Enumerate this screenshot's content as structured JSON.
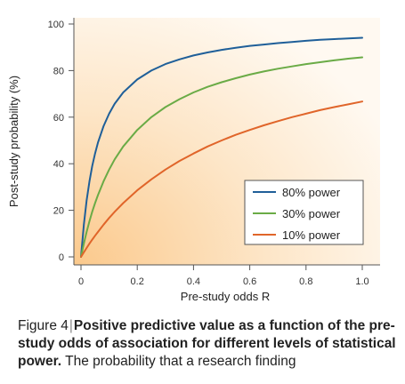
{
  "chart_data": {
    "type": "line",
    "xlabel": "Pre-study odds R",
    "ylabel": "Post-study probability (%)",
    "xlim": [
      0,
      1.0
    ],
    "ylim": [
      0,
      100
    ],
    "x_ticks": [
      "0",
      "0.2",
      "0.4",
      "0.6",
      "0.8",
      "1.0"
    ],
    "y_ticks": [
      "0",
      "20",
      "40",
      "60",
      "80",
      "100"
    ],
    "grid": false,
    "legend_position": "bottom-right",
    "x": [
      0,
      0.01,
      0.02,
      0.03,
      0.04,
      0.05,
      0.06,
      0.08,
      0.1,
      0.12,
      0.15,
      0.2,
      0.25,
      0.3,
      0.35,
      0.4,
      0.45,
      0.5,
      0.55,
      0.6,
      0.65,
      0.7,
      0.75,
      0.8,
      0.85,
      0.9,
      0.95,
      1.0
    ],
    "series": [
      {
        "name": "80% power",
        "color": "#1f5f99",
        "values": [
          0,
          13.8,
          24.2,
          32.4,
          39.0,
          44.4,
          49.0,
          56.1,
          61.5,
          65.8,
          70.6,
          76.2,
          80.0,
          82.8,
          84.8,
          86.5,
          87.8,
          88.9,
          89.8,
          90.6,
          91.2,
          91.8,
          92.3,
          92.8,
          93.2,
          93.5,
          93.8,
          94.1
        ]
      },
      {
        "name": "30% power",
        "color": "#6aab46",
        "values": [
          0,
          5.7,
          10.7,
          15.3,
          19.4,
          23.1,
          26.5,
          32.4,
          37.5,
          41.9,
          47.4,
          54.5,
          60.0,
          64.3,
          67.7,
          70.6,
          73.0,
          75.0,
          76.7,
          78.3,
          79.6,
          80.8,
          81.8,
          82.8,
          83.6,
          84.4,
          85.1,
          85.7
        ]
      },
      {
        "name": "10% power",
        "color": "#e0652a",
        "values": [
          0,
          2.0,
          3.8,
          5.7,
          7.4,
          9.1,
          10.7,
          13.8,
          16.7,
          19.4,
          23.1,
          28.6,
          33.3,
          37.5,
          41.2,
          44.4,
          47.4,
          50.0,
          52.4,
          54.5,
          56.5,
          58.3,
          60.0,
          61.5,
          63.0,
          64.3,
          65.5,
          66.7
        ]
      }
    ]
  },
  "caption": {
    "figure_label": "Figure 4",
    "separator": "|",
    "title": "Positive predictive value as a function of the pre-study odds of association for different levels of statistical power.",
    "text": "The probability that a research finding"
  }
}
